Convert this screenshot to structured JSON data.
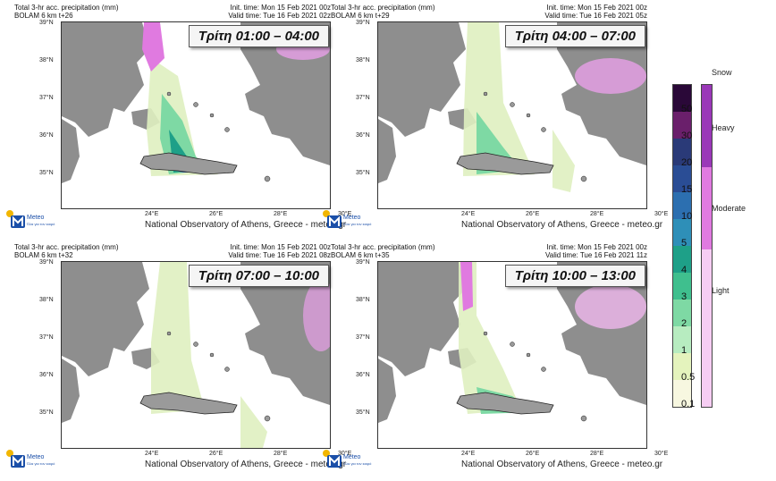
{
  "panels": [
    {
      "title": "Total 3-hr acc. precipitation (mm)",
      "model": "BOLAM 6 km t+26",
      "init": "Init. time: Mon 15 Feb 2021 00z",
      "valid": "Valid time: Tue 16 Feb 2021 02z",
      "time_label": "Τρίτη 01:00 – 04:00"
    },
    {
      "title": "Total 3-hr acc. precipitation (mm)",
      "model": "BOLAM 6 km t+29",
      "init": "Init. time: Mon 15 Feb 2021 00z",
      "valid": "Valid time: Tue 16 Feb 2021 05z",
      "time_label": "Τρίτη 04:00 – 07:00"
    },
    {
      "title": "Total 3-hr acc. precipitation (mm)",
      "model": "BOLAM 6 km t+32",
      "init": "Init. time: Mon 15 Feb 2021 00z",
      "valid": "Valid time: Tue 16 Feb 2021 08z",
      "time_label": "Τρίτη 07:00 – 10:00"
    },
    {
      "title": "Total 3-hr acc. precipitation (mm)",
      "model": "BOLAM 6 km t+35",
      "init": "Init. time: Mon 15 Feb 2021 00z",
      "valid": "Valid time: Tue 16 Feb 2021 11z",
      "time_label": "Τρίτη 10:00 – 13:00"
    }
  ],
  "credit": "National Observatory of Athens, Greece - meteo.gr",
  "logo": {
    "name": "Meteo",
    "tagline1": "Όλα για",
    "tagline2": "τον καιρό"
  },
  "lat_labels": [
    "39°N",
    "38°N",
    "37°N",
    "36°N",
    "35°N"
  ],
  "lon_labels": [
    "24°E",
    "26°E",
    "28°E",
    "30°E"
  ],
  "colorbar": {
    "labels": [
      "50",
      "30",
      "20",
      "15",
      "10",
      "5",
      "4",
      "3",
      "2",
      "1",
      "0.5",
      "0.1"
    ],
    "colors": [
      "#2a0838",
      "#6a1f6b",
      "#2a3a78",
      "#2a4d95",
      "#2c6fb0",
      "#2e8fb8",
      "#1ea088",
      "#3fbf8e",
      "#7ed9a4",
      "#b7ecc0",
      "#e4f3bd",
      "#f7f7e0"
    ]
  },
  "snowbar": {
    "title": "Snow",
    "labels": [
      "Heavy",
      "Moderate",
      "Light"
    ],
    "colors": [
      "#9a38b8",
      "#e07ae0",
      "#f6cdf3"
    ]
  }
}
